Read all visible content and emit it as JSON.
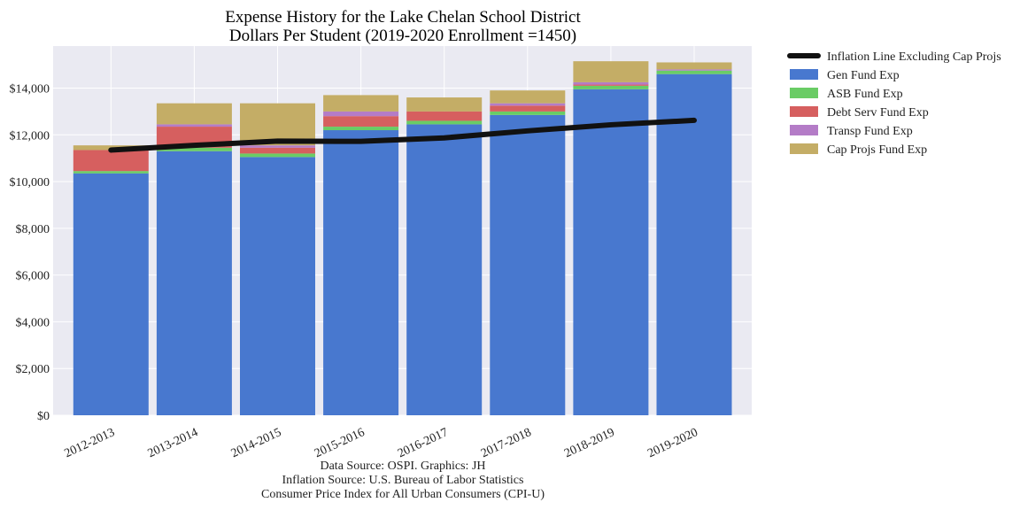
{
  "chart_data": {
    "type": "bar",
    "stacked": true,
    "title": "Expense History for the Lake Chelan School District",
    "subtitle": "Dollars Per Student (2019-2020 Enrollment =1450)",
    "categories": [
      "2012-2013",
      "2013-2014",
      "2014-2015",
      "2015-2016",
      "2016-2017",
      "2017-2018",
      "2018-2019",
      "2019-2020"
    ],
    "series": [
      {
        "name": "Gen Fund Exp",
        "color": "#4878cf",
        "values": [
          10350,
          11300,
          11050,
          12200,
          12450,
          12850,
          13950,
          14600
        ]
      },
      {
        "name": "ASB Fund Exp",
        "color": "#6acc65",
        "values": [
          100,
          150,
          150,
          150,
          150,
          150,
          150,
          150
        ]
      },
      {
        "name": "Debt Serv Fund Exp",
        "color": "#d65f5f",
        "values": [
          900,
          900,
          250,
          450,
          400,
          250,
          50,
          0
        ]
      },
      {
        "name": "Transp Fund Exp",
        "color": "#b47cc7",
        "values": [
          0,
          100,
          100,
          200,
          0,
          100,
          100,
          50
        ]
      },
      {
        "name": "Cap Projs Fund Exp",
        "color": "#c4ad66",
        "values": [
          200,
          900,
          1800,
          700,
          600,
          550,
          900,
          300
        ]
      }
    ],
    "line_series": {
      "name": "Inflation Line Excluding Cap Projs",
      "color": "#111111",
      "values": [
        11350,
        11550,
        11730,
        11720,
        11870,
        12170,
        12430,
        12620
      ]
    },
    "ylim": [
      0,
      15800
    ],
    "yticks": [
      0,
      2000,
      4000,
      6000,
      8000,
      10000,
      12000,
      14000
    ],
    "ytick_labels": [
      "$0",
      "$2,000",
      "$4,000",
      "$6,000",
      "$8,000",
      "$10,000",
      "$12,000",
      "$14,000"
    ],
    "grid": true,
    "legend_position": "outside-right"
  },
  "footnotes": [
    "Data Source: OSPI. Graphics: JH",
    "Inflation Source: U.S. Bureau of Labor Statistics",
    "Consumer Price Index for All Urban Consumers (CPI-U)"
  ]
}
